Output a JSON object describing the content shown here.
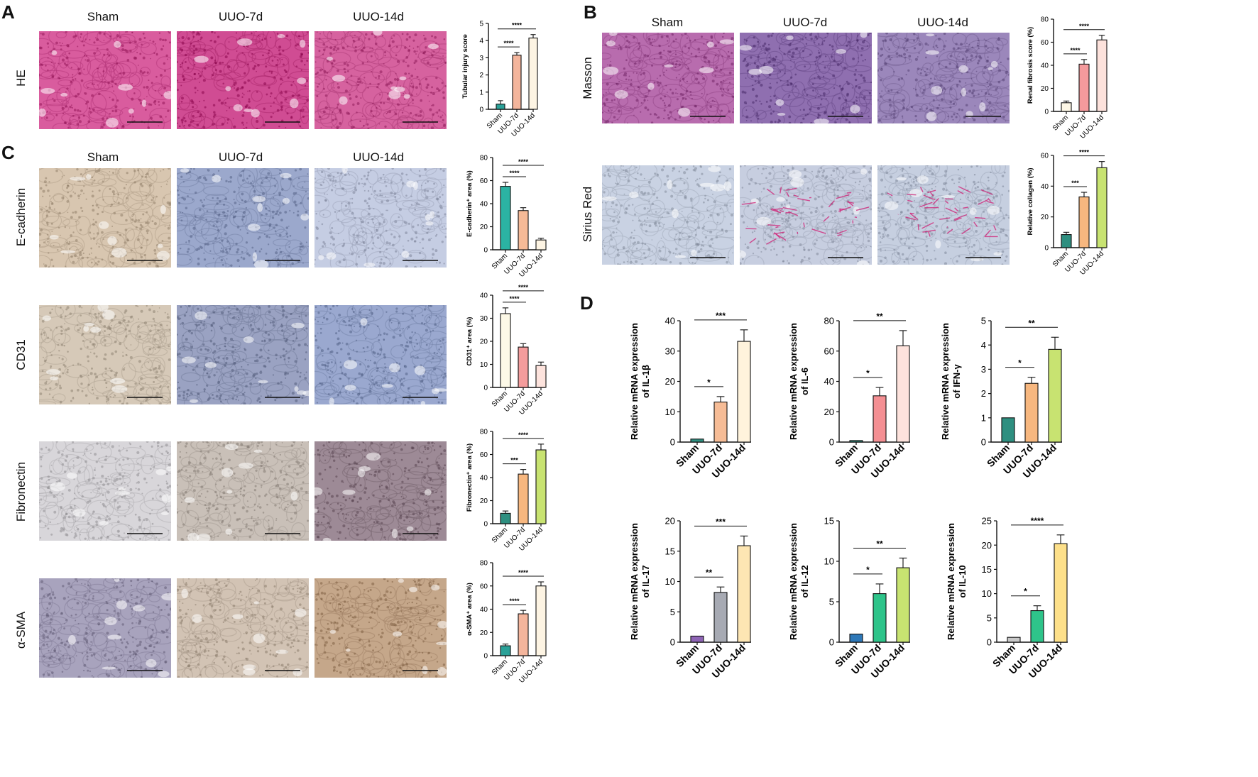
{
  "panels": {
    "A": {
      "letter": "A",
      "columns": [
        "Sham",
        "UUO-7d",
        "UUO-14d"
      ],
      "row_label": "HE"
    },
    "B": {
      "letter": "B",
      "columns": [
        "Sham",
        "UUO-7d",
        "UUO-14d"
      ],
      "row_labels": [
        "Masson",
        "Sirius Red"
      ]
    },
    "C": {
      "letter": "C",
      "columns": [
        "Sham",
        "UUO-7d",
        "UUO-14d"
      ],
      "row_labels": [
        "E-cadherin",
        "CD31",
        "Fibronectin",
        "α-SMA"
      ]
    },
    "D": {
      "letter": "D"
    }
  },
  "micrographs": {
    "he": [
      "#d95c9e",
      "#d04c93",
      "#d6629f"
    ],
    "masson": [
      "#b86cae",
      "#8f6fb0",
      "#9b87bb"
    ],
    "sirius": [
      "#c9d2e3",
      "#c7cee0",
      "#c6cfe0"
    ],
    "ecad": [
      "#d8c6b0",
      "#9ba8cc",
      "#c5cde3"
    ],
    "cd31": [
      "#d6c9b8",
      "#9aa2c2",
      "#9aa8cf"
    ],
    "fn": [
      "#d8d6da",
      "#c9c0b8",
      "#9d8a96"
    ],
    "sma": [
      "#a8a3bd",
      "#d2c3b4",
      "#c5a78a"
    ]
  },
  "chart_data": [
    {
      "id": "he_score",
      "type": "bar",
      "categories": [
        "Sham",
        "UUO-7d",
        "UUO-14d"
      ],
      "values": [
        0.3,
        3.15,
        4.15
      ],
      "errors": [
        0.2,
        0.15,
        0.2
      ],
      "colors": [
        "#2aa198",
        "#f4b59c",
        "#fdf4e3"
      ],
      "ylabel": "Tubular injury score",
      "ylim": [
        0,
        5
      ],
      "yticks": [
        "0",
        "1",
        "2",
        "3",
        "4",
        "5"
      ],
      "significance": [
        "****",
        "****"
      ]
    },
    {
      "id": "masson_score",
      "type": "bar",
      "categories": [
        "Sham",
        "UUO-7d",
        "UUO-14d"
      ],
      "values": [
        7.5,
        41,
        62
      ],
      "errors": [
        1.5,
        4,
        4
      ],
      "colors": [
        "#fdf7e6",
        "#f49a9c",
        "#fde2dc"
      ],
      "ylabel": "Renal fibrosis score (%)",
      "ylim": [
        0,
        80
      ],
      "yticks": [
        "0",
        "20",
        "40",
        "60",
        "80"
      ],
      "significance": [
        "****",
        "****"
      ]
    },
    {
      "id": "sirius_collagen",
      "type": "bar",
      "categories": [
        "Sham",
        "UUO-7d",
        "UUO-14d"
      ],
      "values": [
        8.5,
        33,
        52
      ],
      "errors": [
        1.5,
        3,
        4
      ],
      "colors": [
        "#2e8f80",
        "#f7b77f",
        "#c8e371"
      ],
      "ylabel": "Relative collagen (%)",
      "ylim": [
        0,
        60
      ],
      "yticks": [
        "0",
        "20",
        "40",
        "60"
      ],
      "significance": [
        "***",
        "****"
      ]
    },
    {
      "id": "ecad_area",
      "type": "bar",
      "categories": [
        "Sham",
        "UUO-7d",
        "UUO-14d"
      ],
      "values": [
        55,
        34,
        8.5
      ],
      "errors": [
        3.5,
        2.5,
        1.5
      ],
      "colors": [
        "#2bb3a3",
        "#f6ba97",
        "#fdf4e3"
      ],
      "ylabel": "E-cadherin⁺ area (%)",
      "ylim": [
        0,
        80
      ],
      "yticks": [
        "0",
        "20",
        "40",
        "60",
        "80"
      ],
      "significance": [
        "****",
        "****"
      ]
    },
    {
      "id": "cd31_area",
      "type": "bar",
      "categories": [
        "Sham",
        "UUO-7d",
        "UUO-14d"
      ],
      "values": [
        32,
        17.5,
        9.5
      ],
      "errors": [
        2.5,
        1.5,
        1.5
      ],
      "colors": [
        "#fdf9e7",
        "#f49c9c",
        "#fde3dd"
      ],
      "ylabel": "CD31⁺ area (%)",
      "ylim": [
        0,
        40
      ],
      "yticks": [
        "0",
        "10",
        "20",
        "30",
        "40"
      ],
      "significance": [
        "****",
        "****"
      ]
    },
    {
      "id": "fn_area",
      "type": "bar",
      "categories": [
        "Sham",
        "UUO-7d",
        "UUO-14d"
      ],
      "values": [
        9,
        43,
        64
      ],
      "errors": [
        2,
        4,
        5
      ],
      "colors": [
        "#2e8f80",
        "#f7b77f",
        "#c8e371"
      ],
      "ylabel": "Fibronectin⁺ area (%)",
      "ylim": [
        0,
        80
      ],
      "yticks": [
        "0",
        "20",
        "40",
        "60",
        "80"
      ],
      "significance": [
        "***",
        "****"
      ]
    },
    {
      "id": "sma_area",
      "type": "bar",
      "categories": [
        "Sham",
        "UUO-7d",
        "UUO-14d"
      ],
      "values": [
        8.5,
        36,
        60
      ],
      "errors": [
        1.5,
        3,
        3.5
      ],
      "colors": [
        "#2aa198",
        "#f4b59c",
        "#fdf4e3"
      ],
      "ylabel": "α-SMA⁺ area (%)",
      "ylim": [
        0,
        80
      ],
      "yticks": [
        "0",
        "20",
        "40",
        "60",
        "80"
      ],
      "significance": [
        "****",
        "****"
      ]
    },
    {
      "id": "il1b",
      "type": "bar",
      "categories": [
        "Sham",
        "UUO-7d",
        "UUO-14d"
      ],
      "values": [
        1,
        13.2,
        33.2
      ],
      "errors": [
        0,
        1.8,
        3.8
      ],
      "colors": [
        "#2e8f80",
        "#f6bc96",
        "#fff3dc"
      ],
      "ylabel": [
        "Relative mRNA expression",
        "of IL-1β"
      ],
      "ylim": [
        0,
        40
      ],
      "yticks": [
        "0",
        "10",
        "20",
        "30",
        "40"
      ],
      "significance": [
        "*",
        "***"
      ]
    },
    {
      "id": "il6",
      "type": "bar",
      "categories": [
        "Sham",
        "UUO-7d",
        "UUO-14d"
      ],
      "values": [
        1,
        30.5,
        63.5
      ],
      "errors": [
        0,
        5.5,
        10
      ],
      "colors": [
        "#2e8f80",
        "#f48f93",
        "#fde2dc"
      ],
      "ylabel": [
        "Relative mRNA expression",
        "of IL-6"
      ],
      "ylim": [
        0,
        80
      ],
      "yticks": [
        "0",
        "20",
        "40",
        "60",
        "80"
      ],
      "significance": [
        "*",
        "**"
      ]
    },
    {
      "id": "ifng",
      "type": "bar",
      "categories": [
        "Sham",
        "UUO-7d",
        "UUO-14d"
      ],
      "values": [
        1,
        2.42,
        3.82
      ],
      "errors": [
        0,
        0.25,
        0.5
      ],
      "colors": [
        "#2e8f80",
        "#f7b77f",
        "#c8e371"
      ],
      "ylabel": [
        "Relative mRNA expression",
        "of IFN-γ"
      ],
      "ylim": [
        0,
        5
      ],
      "yticks": [
        "0",
        "1",
        "2",
        "3",
        "4",
        "5"
      ],
      "significance": [
        "*",
        "**"
      ]
    },
    {
      "id": "il17",
      "type": "bar",
      "categories": [
        "Sham",
        "UUO-7d",
        "UUO-14d"
      ],
      "values": [
        1,
        8.2,
        15.9
      ],
      "errors": [
        0,
        0.9,
        1.6
      ],
      "colors": [
        "#8e64b5",
        "#a7aab3",
        "#fde6b3"
      ],
      "ylabel": [
        "Relative mRNA expression",
        "of IL-17"
      ],
      "ylim": [
        0,
        20
      ],
      "yticks": [
        "0",
        "5",
        "10",
        "15",
        "20"
      ],
      "significance": [
        "**",
        "***"
      ]
    },
    {
      "id": "il12",
      "type": "bar",
      "categories": [
        "Sham",
        "UUO-7d",
        "UUO-14d"
      ],
      "values": [
        1,
        6,
        9.2
      ],
      "errors": [
        0,
        1.2,
        1.2
      ],
      "colors": [
        "#2e78b8",
        "#2ec48a",
        "#c8e371"
      ],
      "ylabel": [
        "Relative mRNA expression",
        "of IL-12"
      ],
      "ylim": [
        0,
        15
      ],
      "yticks": [
        "0",
        "5",
        "10",
        "15"
      ],
      "significance": [
        "*",
        "**"
      ]
    },
    {
      "id": "il10",
      "type": "bar",
      "categories": [
        "Sham",
        "UUO-7d",
        "UUO-14d"
      ],
      "values": [
        1,
        6.5,
        20.3
      ],
      "errors": [
        0,
        1,
        1.8
      ],
      "colors": [
        "#c8c8c8",
        "#2ec48a",
        "#fde08a"
      ],
      "ylabel": [
        "Relative mRNA expression",
        "of IL-10"
      ],
      "ylim": [
        0,
        25
      ],
      "yticks": [
        "0",
        "5",
        "10",
        "15",
        "20",
        "25"
      ],
      "significance": [
        "*",
        "****"
      ]
    }
  ]
}
